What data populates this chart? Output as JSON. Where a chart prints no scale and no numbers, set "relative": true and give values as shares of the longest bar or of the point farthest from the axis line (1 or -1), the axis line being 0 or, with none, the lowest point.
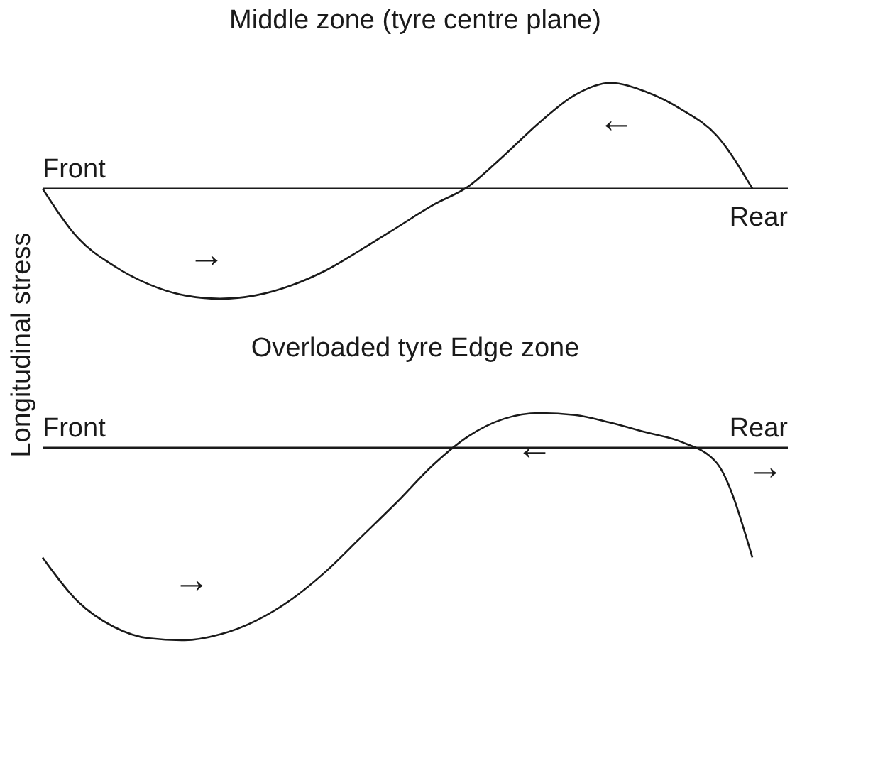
{
  "chart_data": [
    {
      "type": "line",
      "title": "Middle zone (tyre centre plane)",
      "ylabel": "Longitudinal stress",
      "relative": true,
      "tick_labels": false,
      "grid": false,
      "legend": false,
      "marker": "none",
      "line_style": "solid",
      "categories": [
        null,
        null,
        null,
        null,
        null,
        null,
        null,
        null,
        null,
        null,
        null,
        null,
        null,
        null,
        null,
        null,
        null,
        null,
        null,
        null,
        null,
        null
      ],
      "series": [
        {
          "color": "#1a1a1a",
          "values": [
            0,
            -0.45,
            -0.7,
            -0.87,
            -0.97,
            -1.0,
            -0.97,
            -0.88,
            -0.74,
            -0.55,
            -0.35,
            -0.15,
            0.02,
            0.3,
            0.6,
            0.85,
            0.96,
            0.88,
            0.72,
            0.48,
            0,
            null
          ]
        }
      ],
      "annotations": [
        "Front",
        "Rear",
        "→",
        "←"
      ]
    },
    {
      "type": "line",
      "title": "Overloaded tyre Edge zone",
      "relative": true,
      "tick_labels": false,
      "grid": false,
      "legend": false,
      "marker": "none",
      "line_style": "solid",
      "categories": [
        null,
        null,
        null,
        null,
        null,
        null,
        null,
        null,
        null,
        null,
        null,
        null,
        null,
        null,
        null,
        null,
        null,
        null,
        null,
        null,
        null,
        null
      ],
      "series": [
        {
          "color": "#1a1a1a",
          "values": [
            -0.57,
            -0.8,
            -0.93,
            -0.99,
            -1.0,
            -0.97,
            -0.9,
            -0.79,
            -0.64,
            -0.46,
            -0.28,
            -0.09,
            0.06,
            0.15,
            0.18,
            0.17,
            0.13,
            0.08,
            0.03,
            -0.08,
            -0.57,
            null
          ]
        }
      ],
      "annotations": [
        "Front",
        "Rear",
        "→",
        "←",
        "→"
      ]
    }
  ]
}
